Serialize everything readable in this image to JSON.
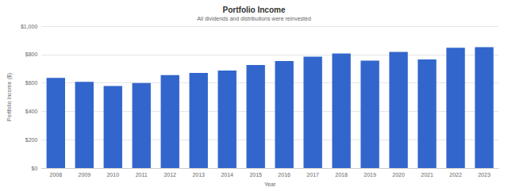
{
  "chart_data": {
    "type": "bar",
    "title": "Portfolio Income",
    "subtitle": "All dividends and distributions were reinvested",
    "x_label": "Year",
    "y_label": "Portfolio Income ($)",
    "categories": [
      "2008",
      "2009",
      "2010",
      "2011",
      "2012",
      "2013",
      "2014",
      "2015",
      "2016",
      "2017",
      "2018",
      "2019",
      "2020",
      "2021",
      "2022",
      "2023"
    ],
    "values": [
      635,
      608,
      578,
      600,
      655,
      670,
      688,
      727,
      755,
      785,
      808,
      757,
      818,
      765,
      848,
      852
    ],
    "color": "#3366cc",
    "ylim": [
      0,
      1000
    ],
    "yticks": [
      {
        "value": 0,
        "label": "$0"
      },
      {
        "value": 200,
        "label": "$200"
      },
      {
        "value": 400,
        "label": "$400"
      },
      {
        "value": 600,
        "label": "$600"
      },
      {
        "value": 800,
        "label": "$800"
      },
      {
        "value": 1000,
        "label": "$1,000"
      }
    ],
    "grid": true
  }
}
